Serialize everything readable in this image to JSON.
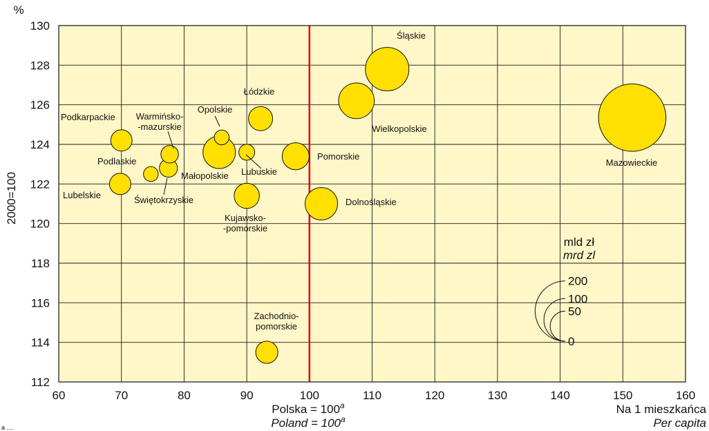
{
  "chart_data": {
    "type": "scatter",
    "subtype": "bubble",
    "y_unit": "%",
    "ylabel": "2000=100",
    "xlabel_pl": "Na 1 mieszkańca",
    "xlabel_en": "Per capita",
    "reference_line_label_pl": "Polska = 100",
    "reference_line_label_en": "Poland = 100",
    "reference_line_sup": "a",
    "reference_line_x": 100,
    "reference_line_color": "#e0001a",
    "xlim": [
      60,
      160
    ],
    "ylim": [
      112,
      130
    ],
    "x_ticks": [
      60,
      70,
      80,
      90,
      100,
      110,
      120,
      130,
      140,
      150,
      160
    ],
    "y_ticks": [
      112,
      114,
      116,
      118,
      120,
      122,
      124,
      126,
      128,
      130
    ],
    "grid": true,
    "plot_background": "#fff7c8",
    "bubble_fill": "#ffe000",
    "points": [
      {
        "name": "Mazowieckie",
        "x": 151.5,
        "y": 125.35,
        "size": 250
      },
      {
        "name": "Śląskie",
        "x": 112.4,
        "y": 127.8,
        "size": 104
      },
      {
        "name": "Wielkopolskie",
        "x": 107.5,
        "y": 126.2,
        "size": 70
      },
      {
        "name": "Dolnośląskie",
        "x": 101.9,
        "y": 121.0,
        "size": 58
      },
      {
        "name": "Małopolskie",
        "x": 85.6,
        "y": 123.6,
        "size": 58
      },
      {
        "name": "Pomorskie",
        "x": 97.8,
        "y": 123.4,
        "size": 40
      },
      {
        "name": "Łódzkie",
        "x": 92.2,
        "y": 125.3,
        "size": 32
      },
      {
        "name": "Kujawsko-\n-pomorskie",
        "x": 90.0,
        "y": 121.4,
        "size": 35
      },
      {
        "name": "Zachodnio-\npomorskie",
        "x": 93.2,
        "y": 113.5,
        "size": 27
      },
      {
        "name": "Opolskie",
        "x": 86.0,
        "y": 124.35,
        "size": 12
      },
      {
        "name": "Lubuskie",
        "x": 90.0,
        "y": 123.6,
        "size": 14
      },
      {
        "name": "Podkarpackie",
        "x": 70.0,
        "y": 124.2,
        "size": 25
      },
      {
        "name": "Podlaskie",
        "x": 74.7,
        "y": 122.5,
        "size": 12
      },
      {
        "name": "Lubelskie",
        "x": 69.8,
        "y": 122.0,
        "size": 25
      },
      {
        "name": "Warmińsko-\n-mazurskie",
        "x": 77.7,
        "y": 123.5,
        "size": 17
      },
      {
        "name": "Świętokrzyskie",
        "x": 77.5,
        "y": 122.8,
        "size": 18
      }
    ],
    "legend": {
      "title_pl": "mld zł",
      "title_en": "mrd zl",
      "sizes": [
        200,
        100,
        50,
        0
      ],
      "labels": [
        "200",
        "100",
        "50",
        "0"
      ],
      "placement": "bottom-right"
    },
    "footnote": "a ...."
  }
}
